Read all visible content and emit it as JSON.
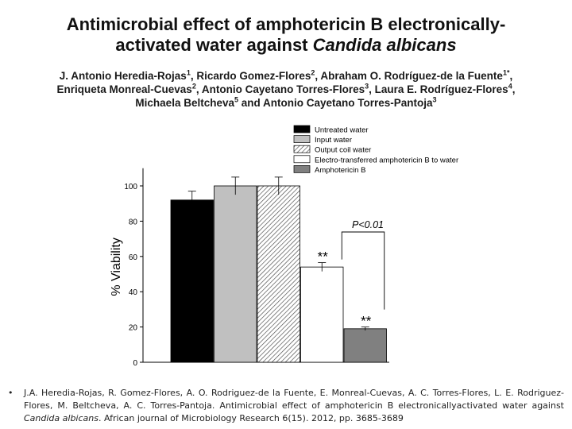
{
  "slide": {
    "title_line1": "Antimicrobial effect of amphotericin B electronically-",
    "title_line2_pre": "activated water against ",
    "title_line2_em": "Candida albicans"
  },
  "authors": [
    {
      "name": "J. Antonio Heredia-Rojas",
      "sup": "1",
      "sep": ", "
    },
    {
      "name": "Ricardo Gomez-Flores",
      "sup": "2",
      "sep": ", "
    },
    {
      "name": "Abraham O. Rodríguez-de la Fuente",
      "sup": "1*",
      "sep": ", "
    },
    {
      "name": "Enriqueta Monreal-Cuevas",
      "sup": "2",
      "sep": ", "
    },
    {
      "name": "Antonio Cayetano Torres-Flores",
      "sup": "3",
      "sep": ", "
    },
    {
      "name": "Laura E. Rodríguez-Flores",
      "sup": "4",
      "sep": ", "
    },
    {
      "name": "Michaela Beltcheva",
      "sup": "5",
      "sep": " and "
    },
    {
      "name": "Antonio Cayetano Torres-Pantoja",
      "sup": "3",
      "sep": ""
    }
  ],
  "chart_data": {
    "type": "bar",
    "ylabel": "% Viability",
    "ylim": [
      0,
      110
    ],
    "yticks": [
      0,
      20,
      40,
      60,
      80,
      100
    ],
    "legend_position": "top-right",
    "series": [
      {
        "name": "Untreated water",
        "value": 92,
        "error": 5,
        "fill": "#000000",
        "pattern": "solid",
        "marker": ""
      },
      {
        "name": "Input water",
        "value": 100,
        "error": 5,
        "fill": "#c0c0c0",
        "pattern": "solid",
        "marker": ""
      },
      {
        "name": "Output coil water",
        "value": 100,
        "error": 5,
        "fill": "#ffffff",
        "pattern": "hatch",
        "marker": ""
      },
      {
        "name": "Electro-transferred amphotericin B to water",
        "value": 54,
        "error": 2.5,
        "fill": "#ffffff",
        "pattern": "solid",
        "marker": "**"
      },
      {
        "name": "Amphotericin B",
        "value": 19,
        "error": 1,
        "fill": "#808080",
        "pattern": "solid",
        "marker": "**"
      }
    ],
    "annotation": {
      "text": "P<0.01",
      "between": [
        3,
        4
      ]
    }
  },
  "citation": {
    "bullet": "•",
    "pre": "J.A. Heredia-Rojas, R. Gomez-Flores, A. O. Rodriguez-de la Fuente, E. Monreal-Cuevas, A. C. Torres-Flores, L. E. Rodriguez-Flores, M. Beltcheva, A. C. Torres-Pantoja. Antimicrobial effect of amphotericin B electronicallyactivated water against ",
    "em": "Candida albicans",
    "post": ". African journal of Microbiology Research 6(15). 2012, pp. 3685-3689"
  }
}
